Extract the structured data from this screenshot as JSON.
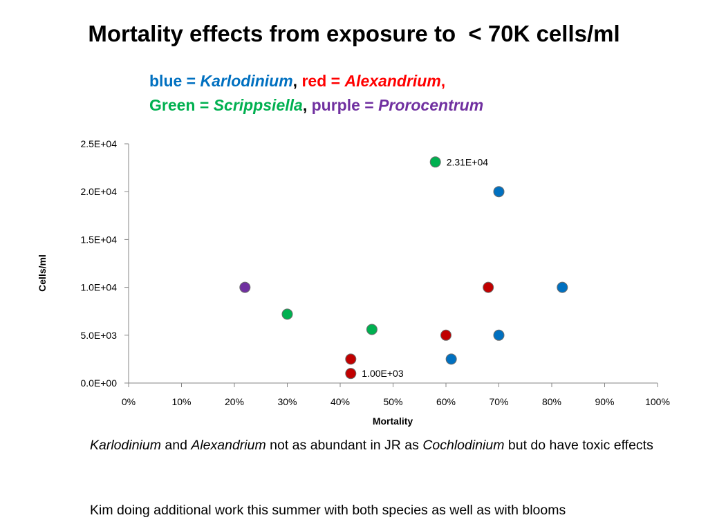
{
  "slide": {
    "title": "Mortality effects from exposure to  < 70K cells/ml"
  },
  "legend": {
    "line1": [
      {
        "text": "blue = ",
        "color": "#0070C0",
        "italic": false
      },
      {
        "text": "Karlodinium",
        "color": "#0070C0",
        "italic": true
      },
      {
        "text": ", ",
        "color": "#000000",
        "italic": false
      },
      {
        "text": "red = ",
        "color": "#FF0000",
        "italic": false
      },
      {
        "text": "Alexandrium",
        "color": "#FF0000",
        "italic": true
      },
      {
        "text": ",",
        "color": "#FF0000",
        "italic": false
      }
    ],
    "line2": [
      {
        "text": "Green = ",
        "color": "#00B050",
        "italic": false
      },
      {
        "text": "Scrippsiella",
        "color": "#00B050",
        "italic": true
      },
      {
        "text": ", ",
        "color": "#000000",
        "italic": false
      },
      {
        "text": "purple = ",
        "color": "#7030A0",
        "italic": false
      },
      {
        "text": "Prorocentrum",
        "color": "#7030A0",
        "italic": true
      }
    ]
  },
  "chart_data": {
    "type": "scatter",
    "xlabel": "Mortality",
    "ylabel": "Cells/ml",
    "xlim": [
      0,
      1
    ],
    "ylim": [
      0,
      25000
    ],
    "x_ticks": [
      0,
      0.1,
      0.2,
      0.3,
      0.4,
      0.5,
      0.6,
      0.7,
      0.8,
      0.9,
      1.0
    ],
    "x_tick_labels": [
      "0%",
      "10%",
      "20%",
      "30%",
      "40%",
      "50%",
      "60%",
      "70%",
      "80%",
      "90%",
      "100%"
    ],
    "y_ticks": [
      0,
      5000,
      10000,
      15000,
      20000,
      25000
    ],
    "y_tick_labels": [
      "0.0E+00",
      "5.0E+03",
      "1.0E+04",
      "1.5E+04",
      "2.0E+04",
      "2.5E+04"
    ],
    "grid": false,
    "series": [
      {
        "color": "#0070C0",
        "points": [
          {
            "x": 0.7,
            "y": 20000
          },
          {
            "x": 0.82,
            "y": 10000
          },
          {
            "x": 0.7,
            "y": 5000
          },
          {
            "x": 0.61,
            "y": 2500
          }
        ]
      },
      {
        "color": "#C00000",
        "points": [
          {
            "x": 0.68,
            "y": 10000
          },
          {
            "x": 0.6,
            "y": 5000
          },
          {
            "x": 0.42,
            "y": 2500
          },
          {
            "x": 0.42,
            "y": 1000,
            "label": "1.00E+03"
          }
        ]
      },
      {
        "color": "#00B050",
        "points": [
          {
            "x": 0.58,
            "y": 23100,
            "label": "2.31E+04"
          },
          {
            "x": 0.46,
            "y": 5600
          },
          {
            "x": 0.3,
            "y": 7200
          }
        ]
      },
      {
        "color": "#7030A0",
        "points": [
          {
            "x": 0.22,
            "y": 10000
          }
        ]
      }
    ]
  },
  "notes": {
    "para1": [
      {
        "text": "Karlodinium",
        "italic": true
      },
      {
        "text": " and ",
        "italic": false
      },
      {
        "text": "Alexandrium",
        "italic": true
      },
      {
        "text": " not as abundant in JR as ",
        "italic": false
      },
      {
        "text": "Cochlodinium",
        "italic": true
      },
      {
        "text": " but do have toxic effects",
        "italic": false
      }
    ],
    "para2": "Kim doing additional work this summer with both species as well as with blooms"
  }
}
